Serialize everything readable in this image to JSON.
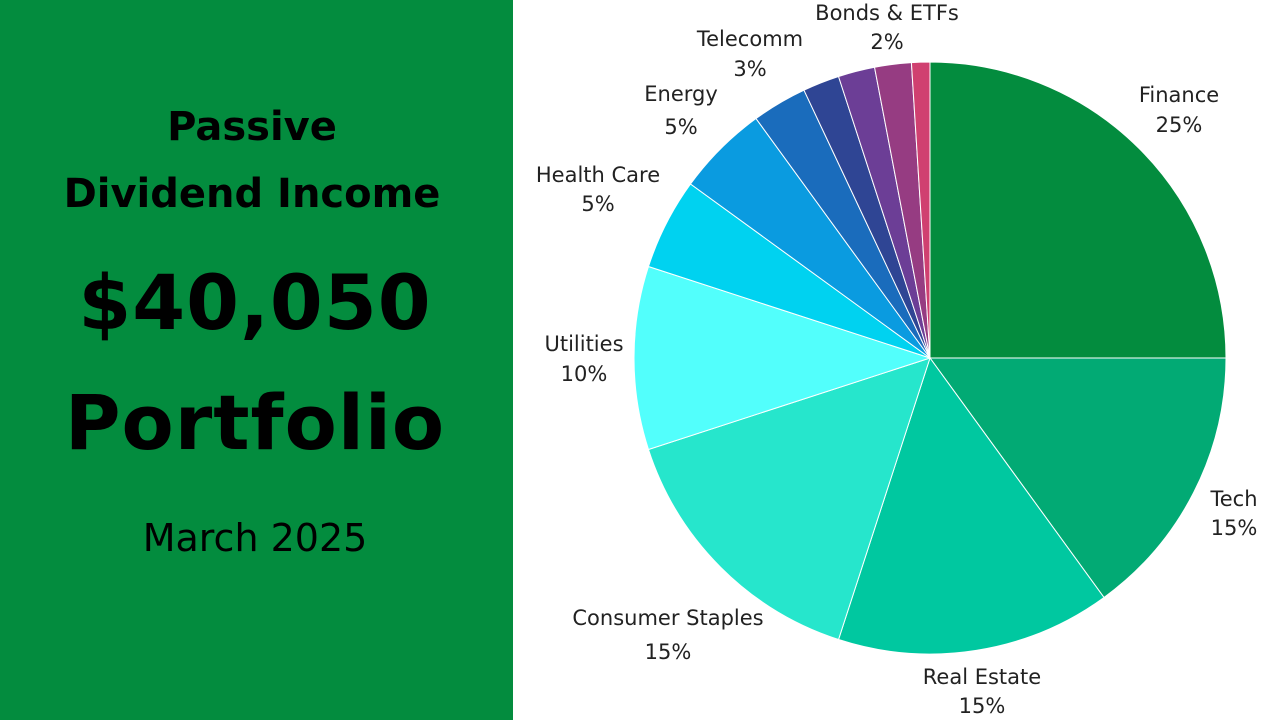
{
  "headline": {
    "line1": "Passive",
    "line2": "Dividend Income",
    "amount": "$40,050",
    "portfolio": "Portfolio",
    "date": "March 2025"
  },
  "colors": {
    "panel": "#038c3e"
  },
  "chart_data": {
    "type": "pie",
    "slices": [
      {
        "name": "Finance",
        "value": 25,
        "pct_label": "25%",
        "color": "#038c3e"
      },
      {
        "name": "Tech",
        "value": 15,
        "pct_label": "15%",
        "color": "#02aa74"
      },
      {
        "name": "Real Estate",
        "value": 15,
        "pct_label": "15%",
        "color": "#00c8a0"
      },
      {
        "name": "Consumer Staples",
        "value": 15,
        "pct_label": "15%",
        "color": "#26e6cc"
      },
      {
        "name": "Utilities",
        "value": 10,
        "pct_label": "10%",
        "color": "#52fffc"
      },
      {
        "name": "Health Care",
        "value": 5,
        "pct_label": "5%",
        "color": "#00d2f0"
      },
      {
        "name": "Energy",
        "value": 5,
        "pct_label": "5%",
        "color": "#0a9be0"
      },
      {
        "name": "Telecomm",
        "value": 3,
        "pct_label": "3%",
        "color": "#1a6cbc"
      },
      {
        "name": "Bonds & ETFs",
        "value": 2,
        "pct_label": "2%",
        "color": "#2f4594"
      },
      {
        "name": "",
        "value": 2,
        "pct_label": "",
        "color": "#6c3e96"
      },
      {
        "name": "",
        "value": 2,
        "pct_label": "",
        "color": "#963c82"
      },
      {
        "name": "",
        "value": 1,
        "pct_label": "",
        "color": "#d04070"
      }
    ],
    "labels_shown": [
      "Finance",
      "Tech",
      "Real Estate",
      "Consumer Staples",
      "Utilities",
      "Health Care",
      "Energy",
      "Telecomm",
      "Bonds & ETFs"
    ]
  }
}
